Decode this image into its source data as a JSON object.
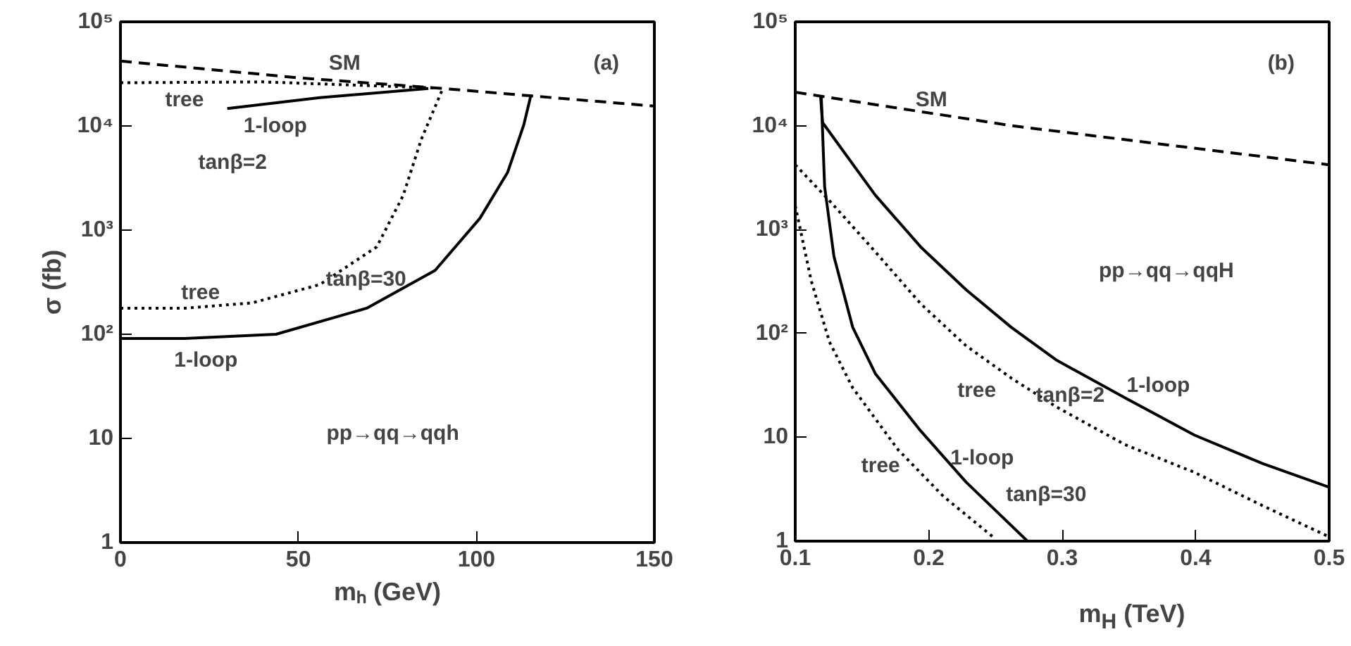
{
  "chart_data": [
    {
      "type": "line",
      "xlabel": "mₕ (GeV)",
      "ylabel": "σ (fb)",
      "log": "y",
      "grid": false,
      "xlim": [
        0,
        150
      ],
      "xticks": [
        0,
        50,
        100,
        150
      ],
      "ylim": [
        1,
        100000
      ],
      "yticks": [
        1,
        10,
        {
          "value": 100,
          "label": "10²"
        },
        {
          "value": 1000,
          "label": "10³"
        },
        {
          "value": 10000,
          "label": "10⁴"
        },
        {
          "value": 100000,
          "label": "10⁵"
        }
      ],
      "series": [
        {
          "color": "#000000",
          "line_style": "dashed",
          "x": [
            0,
            50,
            90,
            115,
            150
          ],
          "values": [
            42000,
            29000,
            23000,
            19500,
            15500
          ]
        },
        {
          "color": "#000000",
          "line_style": "dotted",
          "x": [
            0,
            40,
            88
          ],
          "values": [
            26000,
            26500,
            23200
          ]
        },
        {
          "color": "#000000",
          "line_style": "solid",
          "x": [
            30,
            56,
            86.5
          ],
          "values": [
            14700,
            18700,
            22900
          ]
        },
        {
          "color": "#000000",
          "line_style": "dotted",
          "x": [
            0,
            18,
            37,
            56,
            72,
            79.4,
            84.5,
            90.5
          ],
          "values": [
            178,
            178,
            200,
            300,
            690,
            2140,
            7400,
            22600
          ]
        },
        {
          "color": "#000000",
          "line_style": "solid",
          "x": [
            0,
            18,
            43.7,
            69.2,
            88.4,
            101,
            108.8,
            113.3,
            115.2
          ],
          "values": [
            91,
            91,
            100,
            178,
            410,
            1300,
            3600,
            10200,
            19000
          ]
        }
      ],
      "annotations": [
        "SM",
        "(a)",
        "tree",
        "1-loop",
        "tanβ=2",
        "tree",
        "tanβ=30",
        "1-loop",
        "pp→qq→qqh"
      ]
    },
    {
      "type": "line",
      "xlabel": "m$_{H}$ (TeV)",
      "log": "y",
      "grid": false,
      "xlim": [
        0.1,
        0.5
      ],
      "xticks": [
        0.1,
        0.2,
        0.3,
        0.4,
        0.5
      ],
      "ylim": [
        1,
        100000
      ],
      "yticks": [
        1,
        10,
        {
          "value": 100,
          "label": "10²"
        },
        {
          "value": 1000,
          "label": "10³"
        },
        {
          "value": 10000,
          "label": "10⁴"
        },
        {
          "value": 100000,
          "label": "10⁵"
        }
      ],
      "series": [
        {
          "color": "#000000",
          "line_style": "dashed",
          "x": [
            0.1,
            0.262,
            0.5
          ],
          "values": [
            21000,
            10000,
            4200
          ]
        },
        {
          "color": "#000000",
          "line_style": "solid",
          "x": [
            0.119,
            0.1205,
            0.16,
            0.194,
            0.228,
            0.262,
            0.296,
            0.347,
            0.399,
            0.45,
            0.5
          ],
          "values": [
            19000,
            10700,
            2140,
            680,
            263,
            114,
            55,
            24,
            10.5,
            5.6,
            3.3
          ]
        },
        {
          "color": "#000000",
          "line_style": "dotted",
          "x": [
            0.1,
            0.1256,
            0.16,
            0.194,
            0.228,
            0.262,
            0.296,
            0.347,
            0.399,
            0.45,
            0.5
          ],
          "values": [
            4200,
            1900,
            610,
            193,
            76,
            37,
            19.5,
            8.5,
            4.6,
            2.2,
            1.1
          ]
        },
        {
          "color": "#000000",
          "line_style": "solid",
          "x": [
            0.1195,
            0.122,
            0.129,
            0.143,
            0.16,
            0.194,
            0.228,
            0.274
          ],
          "values": [
            19000,
            2600,
            550,
            115,
            41,
            11.5,
            3.7,
            1
          ]
        },
        {
          "color": "#000000",
          "line_style": "dotted",
          "x": [
            0.1,
            0.112,
            0.1256,
            0.143,
            0.177,
            0.211,
            0.25
          ],
          "values": [
            1700,
            320,
            83,
            30,
            7.6,
            2.7,
            1.05
          ]
        }
      ],
      "annotations": [
        "SM",
        "(b)",
        "pp→qq→qqH",
        "tree",
        "tanβ=2",
        "1-loop",
        "1-loop",
        "tree",
        "tanβ=30"
      ]
    }
  ]
}
